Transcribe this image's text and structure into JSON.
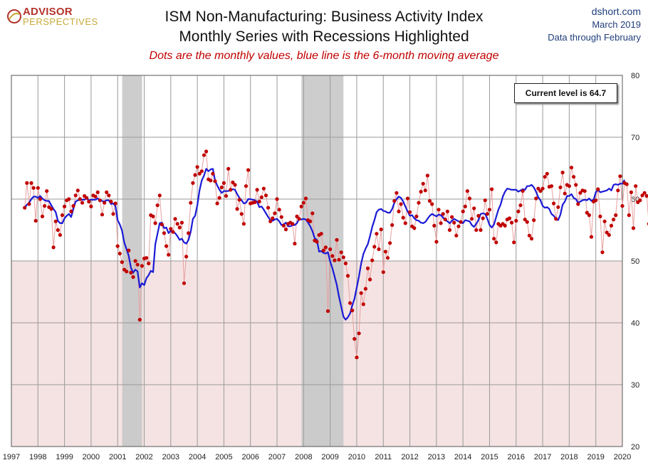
{
  "header": {
    "logo_top": "ADVISOR",
    "logo_bottom": "PERSPECTIVES",
    "title_line1": "ISM Non-Manufacturing: Business Activity Index",
    "title_line2": "Monthly Series with Recessions Highlighted",
    "subtitle": "Dots are the monthly values, blue line is the 6-month moving average",
    "source_site": "dshort.com",
    "source_date": "March 2019",
    "source_note": "Data through February"
  },
  "callout": "Current level is 64.7",
  "colors": {
    "dots": "#c00000",
    "dot_line": "#e8a0a0",
    "moving_average": "#1a1ad6",
    "recession": "#c8c8c8",
    "contraction_zone": "#f5e3e3",
    "grid": "#9a9a9a"
  },
  "chart_data": {
    "type": "line",
    "title": "ISM Non-Manufacturing: Business Activity Index",
    "xlim": [
      1997,
      2020
    ],
    "ylim": [
      20,
      80
    ],
    "x_ticks": [
      "1997",
      "1998",
      "1999",
      "2000",
      "2001",
      "2002",
      "2003",
      "2004",
      "2005",
      "2006",
      "2007",
      "2008",
      "2009",
      "2010",
      "2011",
      "2012",
      "2013",
      "2014",
      "2015",
      "2016",
      "2017",
      "2018",
      "2019",
      "2020"
    ],
    "y_ticks": [
      "20",
      "30",
      "40",
      "50",
      "60",
      "70",
      "80"
    ],
    "y_axis_side": "right",
    "grid": true,
    "contraction_below": 50,
    "recessions": [
      [
        2001.17,
        2001.92
      ],
      [
        2007.92,
        2009.5
      ]
    ],
    "current_level": 64.7,
    "series": [
      {
        "name": "Monthly values",
        "style": "dots",
        "start": 1997.5,
        "values": [
          58.6,
          62.6,
          59.2,
          62.6,
          61.8,
          56.5,
          61.8,
          60.0,
          57.2,
          58.9,
          61.3,
          58.7,
          58.4,
          52.2,
          56.4,
          55.0,
          54.2,
          57.4,
          58.8,
          59.8,
          60.0,
          58.0,
          58.9,
          60.6,
          61.4,
          60.0,
          59.4,
          60.5,
          60.2,
          59.6,
          58.8,
          60.6,
          60.4,
          61.1,
          59.8,
          57.5,
          59.4,
          61.1,
          60.6,
          59.6,
          57.6,
          59.3,
          52.4,
          51.2,
          49.8,
          48.6,
          48.3,
          51.7,
          48.1,
          47.4,
          50.0,
          49.4,
          40.5,
          49.2,
          50.4,
          50.5,
          49.6,
          57.4,
          57.2,
          56.1,
          59.0,
          60.6,
          55.9,
          54.5,
          52.4,
          51.0,
          55.2,
          54.7,
          56.8,
          56.0,
          55.4,
          56.2,
          46.4,
          50.7,
          54.5,
          59.4,
          62.6,
          63.9,
          65.2,
          64.1,
          64.5,
          67.1,
          67.7,
          63.2,
          63.0,
          64.1,
          62.9,
          59.3,
          60.2,
          61.9,
          62.6,
          60.5,
          64.9,
          61.5,
          62.7,
          62.3,
          58.4,
          59.9,
          57.6,
          56.0,
          62.1,
          64.7,
          59.3,
          59.4,
          59.5,
          61.5,
          59.6,
          60.3,
          61.7,
          60.6,
          58.6,
          56.4,
          56.9,
          57.7,
          60.0,
          58.3,
          57.1,
          55.7,
          55.1,
          56.0,
          56.2,
          56.0,
          52.8,
          57.2,
          56.8,
          58.8,
          59.4,
          60.1,
          56.6,
          56.4,
          57.7,
          53.3,
          53.1,
          54.2,
          54.4,
          51.7,
          52.2,
          41.9,
          51.9,
          50.8,
          50.1,
          53.4,
          50.2,
          51.4,
          50.6,
          49.6,
          47.6,
          43.2,
          42.0,
          37.4,
          34.4,
          38.3,
          44.8,
          43.0,
          45.5,
          48.8,
          47.0,
          50.1,
          52.3,
          54.4,
          51.9,
          55.1,
          48.2,
          51.5,
          50.5,
          52.9,
          55.8,
          59.7,
          61.0,
          58.0,
          59.2,
          57.0,
          56.1,
          60.1,
          57.9,
          55.6,
          55.3,
          57.2,
          59.4,
          61.2,
          62.5,
          61.4,
          63.8,
          59.7,
          59.2,
          55.7,
          53.1,
          58.3,
          56.1,
          57.6,
          56.7,
          58.0,
          55.0,
          57.1,
          56.2,
          54.1,
          55.6,
          56.3,
          58.0,
          58.8,
          61.3,
          60.1,
          56.8,
          58.5,
          55.0,
          57.3,
          55.0,
          56.9,
          59.8,
          57.6,
          58.3,
          61.6,
          53.6,
          53.0,
          56.0,
          55.7,
          56.0,
          55.7,
          56.7,
          56.9,
          56.2,
          53.0,
          56.5,
          58.0,
          59.0,
          61.3,
          56.7,
          56.3,
          54.1,
          53.6,
          56.6,
          60.1,
          61.7,
          61.3,
          61.7,
          63.6,
          64.1,
          62.0,
          62.1,
          59.3,
          56.8,
          58.7,
          61.9,
          64.3,
          60.9,
          62.3,
          62.1,
          65.1,
          63.6,
          62.3,
          59.2,
          61.0,
          61.4,
          61.3,
          57.8,
          57.4,
          53.9,
          59.6,
          59.8,
          61.6,
          57.2,
          51.4,
          56.4,
          54.6,
          54.2,
          55.7,
          56.7,
          57.4,
          61.4,
          63.7,
          58.9,
          62.6,
          62.4,
          57.4,
          61.1,
          55.3,
          62.1,
          59.5,
          59.8,
          60.6,
          61.0,
          60.5,
          56.0,
          61.3,
          57.0,
          59.6,
          61.9,
          64.1,
          59.8,
          62.2,
          63.0,
          58.0,
          64.1,
          56.0,
          61.1,
          59.7,
          61.8,
          65.2,
          60.9,
          65.2,
          63.6,
          61.1,
          60.8,
          64.7
        ]
      },
      {
        "name": "6-month moving average",
        "style": "line",
        "start": 1997.5,
        "values": [
          58.6,
          59.1,
          59.4,
          60.0,
          60.4,
          60.4,
          60.2,
          60.5,
          60.1,
          59.8,
          59.7,
          59.7,
          59.0,
          58.4,
          57.9,
          56.5,
          56.1,
          56.1,
          56.9,
          57.3,
          57.6,
          57.1,
          58.4,
          59.6,
          59.8,
          59.9,
          59.9,
          59.9,
          60.1,
          59.8,
          59.9,
          59.9,
          59.9,
          60.1,
          59.8,
          59.7,
          59.6,
          59.8,
          59.8,
          59.2,
          59.3,
          58.9,
          56.6,
          55.9,
          54.9,
          53.0,
          51.9,
          50.8,
          48.9,
          48.1,
          48.6,
          48.3,
          45.7,
          46.4,
          46.1,
          47.2,
          47.7,
          48.4,
          48.2,
          52.7,
          54.4,
          56.1,
          56.2,
          55.3,
          55.4,
          54.5,
          54.9,
          54.6,
          54.5,
          54.0,
          53.4,
          53.6,
          53.0,
          52.8,
          53.4,
          54.7,
          56.8,
          57.3,
          59.0,
          61.4,
          63.0,
          63.8,
          64.9,
          64.5,
          64.8,
          64.9,
          63.0,
          62.2,
          61.5,
          61.0,
          61.3,
          61.3,
          61.3,
          61.5,
          61.6,
          61.5,
          60.8,
          60.2,
          59.8,
          59.3,
          59.4,
          60.0,
          60.0,
          59.9,
          59.8,
          59.6,
          58.7,
          58.8,
          58.3,
          57.7,
          57.1,
          56.6,
          56.5,
          56.7,
          56.8,
          56.4,
          55.8,
          55.9,
          56.2,
          55.6,
          55.6,
          55.8,
          55.8,
          56.1,
          56.8,
          56.7,
          56.8,
          56.7,
          56.2,
          55.6,
          54.8,
          53.7,
          53.4,
          51.5,
          51.6,
          51.3,
          51.2,
          51.4,
          49.9,
          48.8,
          47.5,
          46.1,
          44.2,
          42.6,
          41.0,
          40.5,
          40.9,
          41.5,
          42.8,
          43.9,
          45.7,
          47.5,
          49.6,
          51.1,
          52.0,
          52.7,
          54.0,
          55.5,
          56.6,
          57.9,
          58.3,
          58.4,
          58.1,
          58.0,
          57.8,
          57.8,
          58.4,
          59.4,
          60.0,
          60.4,
          60.2,
          59.6,
          58.8,
          58.0,
          57.3,
          57.4,
          56.9,
          56.6,
          56.5,
          56.2,
          56.1,
          56.3,
          56.8,
          57.3,
          57.6,
          57.4,
          57.2,
          57.5,
          57.4,
          57.0,
          56.6,
          56.4,
          56.1,
          56.5,
          56.8,
          56.6,
          56.4,
          56.2,
          56.1,
          56.6,
          56.5,
          56.4,
          55.8,
          55.5,
          56.0,
          56.6,
          57.6,
          57.7,
          57.6,
          56.8,
          55.8,
          55.4,
          55.9,
          57.1,
          58.3,
          59.1,
          60.4,
          61.2,
          61.7,
          61.6,
          61.5,
          61.5,
          61.5,
          61.2,
          61.4,
          61.6,
          61.5,
          62.1,
          62.1,
          62.3,
          61.9,
          61.2,
          60.3,
          59.8,
          58.9,
          58.6,
          58.7,
          58.4,
          57.6,
          57.3,
          56.8,
          56.6,
          57.5,
          59.1,
          59.6,
          60.5,
          60.5,
          60.8,
          60.2,
          60.0,
          59.4,
          59.6,
          59.8,
          59.9,
          59.8,
          60.1,
          59.7,
          59.9,
          61.1,
          61.5,
          61.1,
          61.2,
          61.3,
          61.4,
          61.7,
          61.4,
          62.3,
          62.4,
          62.3,
          62.5,
          62.5,
          63.1
        ]
      }
    ]
  }
}
